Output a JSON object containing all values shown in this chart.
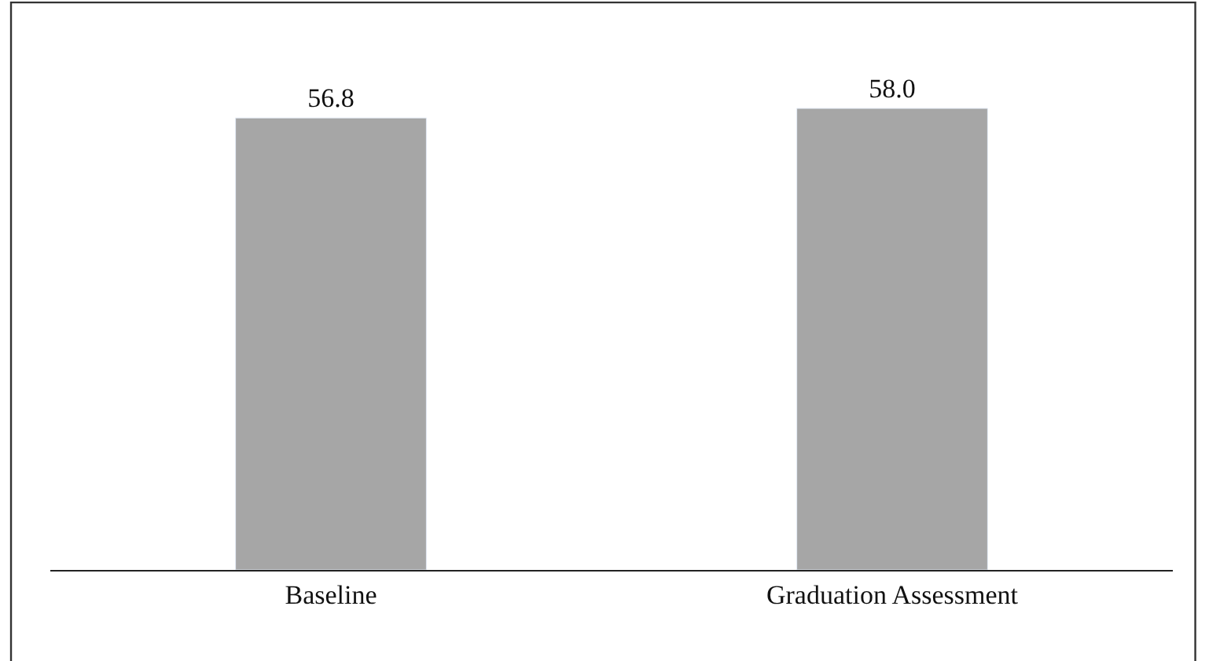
{
  "chart_data": {
    "type": "bar",
    "categories": [
      "Baseline",
      "Graduation Assessment"
    ],
    "values": [
      56.8,
      58.0
    ],
    "value_labels": [
      "56.8",
      "58.0"
    ],
    "color": "#a6a6a6",
    "tick_labels": "x",
    "legend": false
  }
}
